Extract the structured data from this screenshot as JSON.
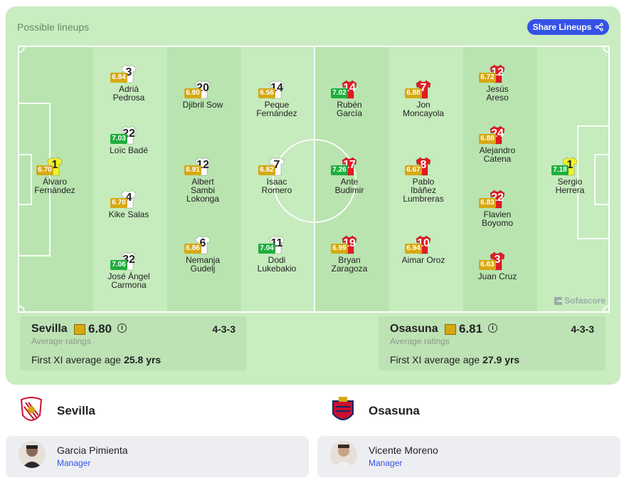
{
  "card": {
    "title": "Possible lineups",
    "share_label": "Share Lineups",
    "watermark": "Sofascore"
  },
  "colors": {
    "rating_green": "#1fae3c",
    "rating_gold": "#d6a812",
    "rating_yellowgreen": "#8ab833",
    "home_shirt": "#ffffff",
    "away_shirt": "#e21b22",
    "gk_shirt": "#f3f327",
    "accent": "#3552e6"
  },
  "home": {
    "name": "Sevilla",
    "rating": "6.80",
    "avg_label": "Average ratings",
    "formation": "4-3-3",
    "age_label": "First XI average age",
    "age_value": "25.8 yrs",
    "manager": {
      "name": "Garcia Pimienta",
      "role": "Manager"
    },
    "players": [
      {
        "num": "1",
        "name": "Álvaro\nFernández",
        "rating": "6.70",
        "rcolor": "gold",
        "kit": "gk"
      },
      {
        "num": "3",
        "name": "Adrià\nPedrosa",
        "rating": "6.84",
        "rcolor": "gold",
        "kit": "home"
      },
      {
        "num": "22",
        "name": "Loïc Badé",
        "rating": "7.03",
        "rcolor": "green",
        "kit": "home"
      },
      {
        "num": "4",
        "name": "Kike Salas",
        "rating": "6.70",
        "rcolor": "gold",
        "kit": "home"
      },
      {
        "num": "32",
        "name": "José Ángel\nCarmona",
        "rating": "7.06",
        "rcolor": "green",
        "kit": "home"
      },
      {
        "num": "20",
        "name": "Djibril Sow",
        "rating": "6.80",
        "rcolor": "gold",
        "kit": "home"
      },
      {
        "num": "12",
        "name": "Albert\nSambi\nLokonga",
        "rating": "6.91",
        "rcolor": "gold",
        "kit": "home"
      },
      {
        "num": "6",
        "name": "Nemanja\nGudelj",
        "rating": "6.86",
        "rcolor": "gold",
        "kit": "home"
      },
      {
        "num": "14",
        "name": "Peque\nFernández",
        "rating": "6.56",
        "rcolor": "gold",
        "kit": "home"
      },
      {
        "num": "7",
        "name": "Isaac\nRomero",
        "rating": "6.82",
        "rcolor": "gold",
        "kit": "home"
      },
      {
        "num": "11",
        "name": "Dodi\nLukebakio",
        "rating": "7.04",
        "rcolor": "green",
        "kit": "home"
      }
    ]
  },
  "away": {
    "name": "Osasuna",
    "rating": "6.81",
    "avg_label": "Average ratings",
    "formation": "4-3-3",
    "age_label": "First XI average age",
    "age_value": "27.9 yrs",
    "manager": {
      "name": "Vicente Moreno",
      "role": "Manager"
    },
    "players": [
      {
        "num": "14",
        "name": "Rubén\nGarcía",
        "rating": "7.02",
        "rcolor": "green",
        "kit": "away"
      },
      {
        "num": "17",
        "name": "Ante\nBudimir",
        "rating": "7.26",
        "rcolor": "green",
        "kit": "away"
      },
      {
        "num": "19",
        "name": "Bryan\nZaragoza",
        "rating": "6.99",
        "rcolor": "gold",
        "kit": "away"
      },
      {
        "num": "7",
        "name": "Jon\nMoncayola",
        "rating": "6.88",
        "rcolor": "gold",
        "kit": "away"
      },
      {
        "num": "8",
        "name": "Pablo\nIbáñez\nLumbreras",
        "rating": "6.67",
        "rcolor": "gold",
        "kit": "away"
      },
      {
        "num": "10",
        "name": "Aimar Oroz",
        "rating": "6.94",
        "rcolor": "gold",
        "kit": "away"
      },
      {
        "num": "12",
        "name": "Jesús\nAreso",
        "rating": "6.72",
        "rcolor": "gold",
        "kit": "away"
      },
      {
        "num": "24",
        "name": "Alejandro\nCatena",
        "rating": "6.88",
        "rcolor": "gold",
        "kit": "away"
      },
      {
        "num": "22",
        "name": "Flavien\nBoyomo",
        "rating": "6.83",
        "rcolor": "gold",
        "kit": "away"
      },
      {
        "num": "3",
        "name": "Juan Cruz",
        "rating": "6.63",
        "rcolor": "gold",
        "kit": "away"
      },
      {
        "num": "1",
        "name": "Sergio\nHerrera",
        "rating": "7.18",
        "rcolor": "green",
        "kit": "gk"
      }
    ]
  }
}
